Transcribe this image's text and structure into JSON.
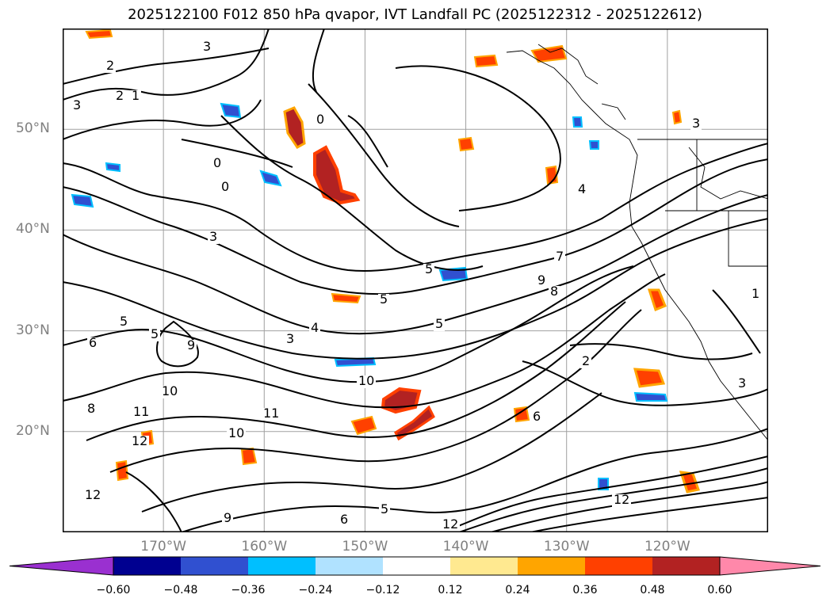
{
  "title": "2025122100 F012 850 hPa qvapor, IVT Landfall PC (2025122312 - 2025122612)",
  "map": {
    "lat_labels": [
      {
        "lat": 50,
        "label": "50°N"
      },
      {
        "lat": 40,
        "label": "40°N"
      },
      {
        "lat": 30,
        "label": "30°N"
      },
      {
        "lat": 20,
        "label": "20°N"
      }
    ],
    "lon_labels": [
      {
        "lon": -170,
        "label": "170°W"
      },
      {
        "lon": -160,
        "label": "160°W"
      },
      {
        "lon": -150,
        "label": "150°W"
      },
      {
        "lon": -140,
        "label": "140°W"
      },
      {
        "lon": -130,
        "label": "130°W"
      },
      {
        "lon": -120,
        "label": "120°W"
      }
    ],
    "contour_labels": [
      "3",
      "2",
      "1",
      "3",
      "2",
      "0",
      "0",
      "0",
      "3",
      "4",
      "5",
      "5",
      "7",
      "9",
      "8",
      "5",
      "5",
      "6",
      "5",
      "4",
      "3",
      "9",
      "10",
      "10",
      "11",
      "12",
      "9",
      "2",
      "3",
      "6",
      "8",
      "10",
      "11",
      "12",
      "12",
      "6",
      "5",
      "12",
      "1",
      "3"
    ]
  },
  "colorbar": {
    "colors": [
      "#9a30d0",
      "#000090",
      "#3050d0",
      "#00bfff",
      "#b0e2ff",
      "#ffffff",
      "#ffe990",
      "#ffa500",
      "#ff4000",
      "#b22222",
      "#ff88aa"
    ],
    "tick_labels": [
      "−0.60",
      "−0.48",
      "−0.36",
      "−0.24",
      "−0.12",
      "0.12",
      "0.24",
      "0.36",
      "0.48",
      "0.60"
    ]
  }
}
